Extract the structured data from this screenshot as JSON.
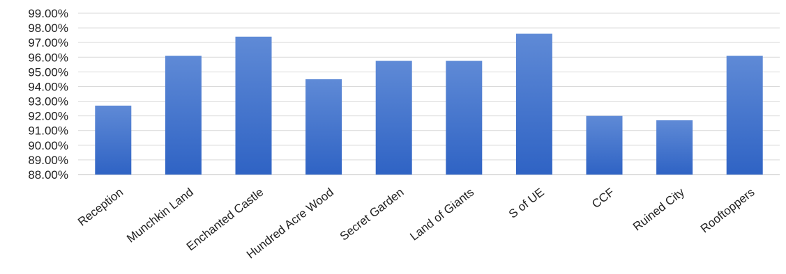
{
  "chart_data": {
    "type": "bar",
    "title": "",
    "xlabel": "",
    "ylabel": "",
    "categories": [
      "Reception",
      "Munchkin Land",
      "Enchanted Castle",
      "Hundred Acre Wood",
      "Secret Garden",
      "Land of Giants",
      "S of UE",
      "CCF",
      "Ruined City",
      "Rooftoppers"
    ],
    "values": [
      92.7,
      96.1,
      97.4,
      94.5,
      95.75,
      95.75,
      97.6,
      92.0,
      91.7,
      96.1
    ],
    "ylim": [
      88,
      99
    ],
    "yticks": [
      88,
      89,
      90,
      91,
      92,
      93,
      94,
      95,
      96,
      97,
      98,
      99
    ],
    "ytick_labels": [
      "88.00%",
      "89.00%",
      "90.00%",
      "91.00%",
      "92.00%",
      "93.00%",
      "94.00%",
      "95.00%",
      "96.00%",
      "97.00%",
      "98.00%",
      "99.00%"
    ],
    "bar_color_top": "#5f8ad6",
    "bar_color_bottom": "#2f63c4",
    "grid": true,
    "legend": "none"
  }
}
